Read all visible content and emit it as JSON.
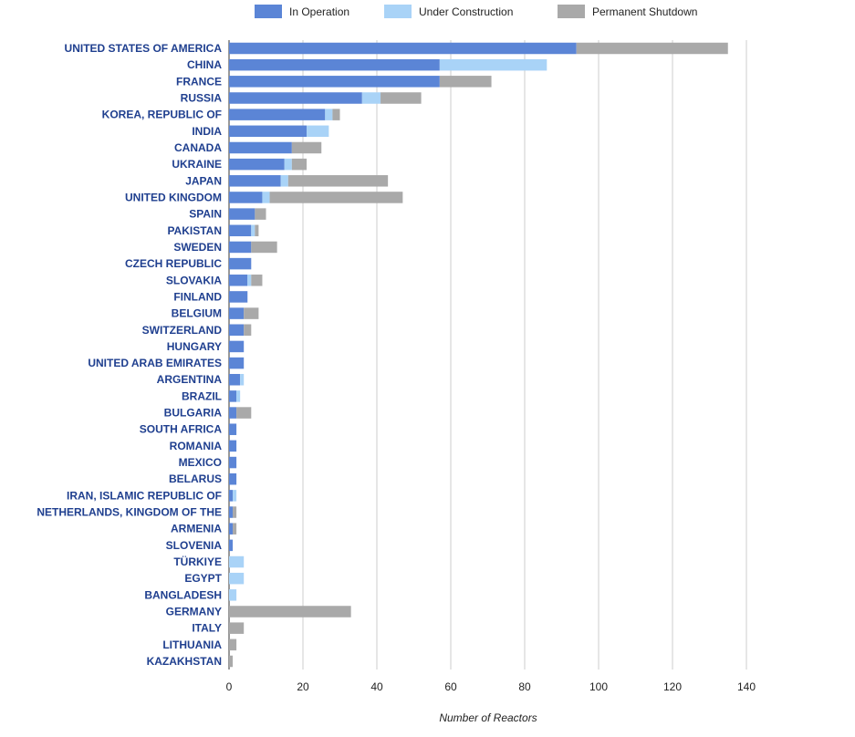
{
  "chart_data": {
    "type": "bar",
    "orientation": "horizontal",
    "stacked": true,
    "xlabel": "Number of Reactors",
    "xlim": [
      0,
      140
    ],
    "xticks": [
      0,
      20,
      40,
      60,
      80,
      100,
      120,
      140
    ],
    "grid": true,
    "legend_position": "top",
    "categories": [
      "UNITED STATES OF AMERICA",
      "CHINA",
      "FRANCE",
      "RUSSIA",
      "KOREA, REPUBLIC OF",
      "INDIA",
      "CANADA",
      "UKRAINE",
      "JAPAN",
      "UNITED KINGDOM",
      "SPAIN",
      "PAKISTAN",
      "SWEDEN",
      "CZECH REPUBLIC",
      "SLOVAKIA",
      "FINLAND",
      "BELGIUM",
      "SWITZERLAND",
      "HUNGARY",
      "UNITED ARAB EMIRATES",
      "ARGENTINA",
      "BRAZIL",
      "BULGARIA",
      "SOUTH AFRICA",
      "ROMANIA",
      "MEXICO",
      "BELARUS",
      "IRAN, ISLAMIC REPUBLIC OF",
      "NETHERLANDS, KINGDOM OF THE",
      "ARMENIA",
      "SLOVENIA",
      "TÜRKIYE",
      "EGYPT",
      "BANGLADESH",
      "GERMANY",
      "ITALY",
      "LITHUANIA",
      "KAZAKHSTAN"
    ],
    "series": [
      {
        "name": "In Operation",
        "color": "#5b85d6",
        "values": [
          94,
          57,
          57,
          36,
          26,
          21,
          17,
          15,
          14,
          9,
          7,
          6,
          6,
          6,
          5,
          5,
          4,
          4,
          4,
          4,
          3,
          2,
          2,
          2,
          2,
          2,
          2,
          1,
          1,
          1,
          1,
          0,
          0,
          0,
          0,
          0,
          0,
          0
        ]
      },
      {
        "name": "Under Construction",
        "color": "#a9d3f7",
        "values": [
          0,
          29,
          0,
          5,
          2,
          6,
          0,
          2,
          2,
          2,
          0,
          1,
          0,
          0,
          1,
          0,
          0,
          0,
          0,
          0,
          1,
          1,
          0,
          0,
          0,
          0,
          0,
          1,
          0,
          0,
          0,
          4,
          4,
          2,
          0,
          0,
          0,
          0
        ]
      },
      {
        "name": "Permanent Shutdown",
        "color": "#a9a9a9",
        "values": [
          41,
          0,
          14,
          11,
          2,
          0,
          8,
          4,
          27,
          36,
          3,
          1,
          7,
          0,
          3,
          0,
          4,
          2,
          0,
          0,
          0,
          0,
          4,
          0,
          0,
          0,
          0,
          0,
          1,
          1,
          0,
          0,
          0,
          0,
          33,
          4,
          2,
          1
        ]
      }
    ]
  }
}
